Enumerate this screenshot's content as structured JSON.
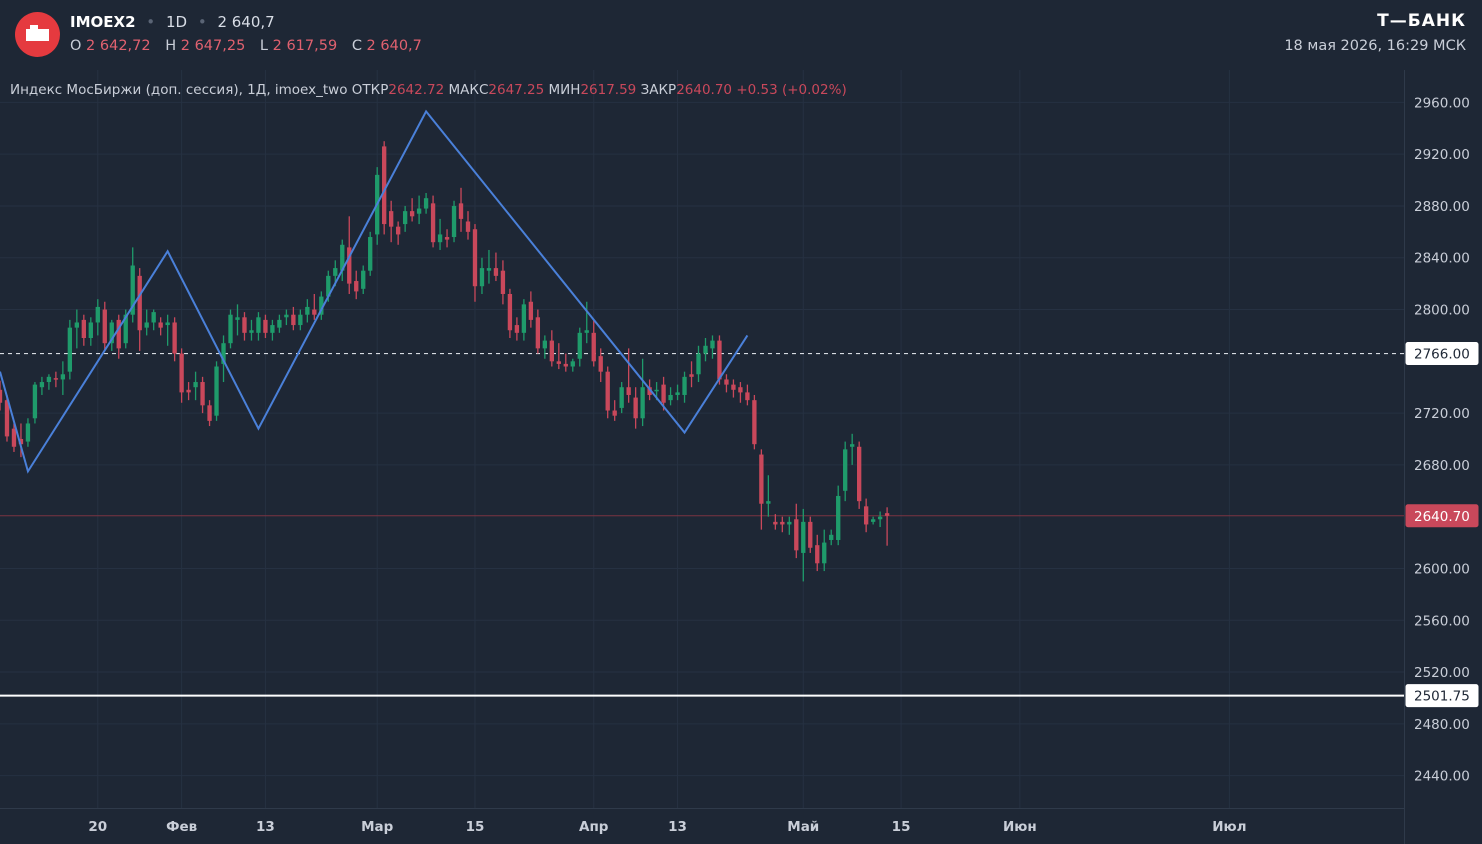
{
  "header": {
    "ticker": "IMOEX2",
    "interval": "1D",
    "last": "2 640,7",
    "o_label": "O",
    "o_value": "2 642,72",
    "h_label": "H",
    "h_value": "2 647,25",
    "l_label": "L",
    "l_value": "2 617,59",
    "c_label": "C",
    "c_value": "2 640,7",
    "brand": "Т—БАНК",
    "datetime": "18 мая 2026, 16:29 МСК"
  },
  "legend": {
    "title": "Индекс МосБиржи (доп. сессия), 1Д, imoex_two",
    "open_label": "ОТКР",
    "open_value": "2642.72",
    "high_label": "МАКС",
    "high_value": "2647.25",
    "low_label": "МИН",
    "low_value": "2617.59",
    "close_label": "ЗАКР",
    "close_value": "2640.70",
    "change": "+0.53 (+0.02%)"
  },
  "colors": {
    "background": "#1e2735",
    "up": "#1f9b6b",
    "down": "#c9485b",
    "zigzag": "#4a80d9",
    "accent": "#e53a3f"
  },
  "chart_data": {
    "type": "candlestick",
    "y_range": [
      2415,
      2985
    ],
    "y_ticks": [
      2960,
      2920,
      2880,
      2840,
      2800,
      2720,
      2680,
      2600,
      2560,
      2520,
      2480,
      2440
    ],
    "y_tick_labels": [
      "2960.00",
      "2920.00",
      "2880.00",
      "2840.00",
      "2800.00",
      "2720.00",
      "2680.00",
      "2600.00",
      "2560.00",
      "2520.00",
      "2480.00",
      "2440.00"
    ],
    "x_range": [
      "2026-01-06",
      "2026-07-26"
    ],
    "x_ticks": [
      {
        "date": "2026-01-20",
        "label": "20"
      },
      {
        "date": "2026-02-01",
        "label": "Фев"
      },
      {
        "date": "2026-02-13",
        "label": "13"
      },
      {
        "date": "2026-03-01",
        "label": "Мар"
      },
      {
        "date": "2026-03-15",
        "label": "15"
      },
      {
        "date": "2026-04-01",
        "label": "Апр"
      },
      {
        "date": "2026-04-13",
        "label": "13"
      },
      {
        "date": "2026-05-01",
        "label": "Май"
      },
      {
        "date": "2026-05-15",
        "label": "15"
      },
      {
        "date": "2026-06-01",
        "label": "Июн"
      },
      {
        "date": "2026-07-01",
        "label": "Июл"
      }
    ],
    "horizontal_lines": [
      {
        "value": 2766.0,
        "label": "2766.00",
        "style": "dashed"
      },
      {
        "value": 2640.7,
        "label": "2640.70",
        "style": "last-price"
      },
      {
        "value": 2501.75,
        "label": "2501.75",
        "style": "solid"
      }
    ],
    "zigzag": [
      [
        "2026-01-06",
        2752
      ],
      [
        "2026-01-10",
        2675
      ],
      [
        "2026-01-30",
        2845
      ],
      [
        "2026-02-12",
        2708
      ],
      [
        "2026-03-08",
        2953
      ],
      [
        "2026-04-14",
        2705
      ],
      [
        "2026-04-23",
        2780
      ]
    ],
    "candles": [
      {
        "d": "2026-01-06",
        "o": 2738,
        "h": 2745,
        "l": 2722,
        "c": 2728
      },
      {
        "d": "2026-01-07",
        "o": 2730,
        "h": 2734,
        "l": 2698,
        "c": 2702
      },
      {
        "d": "2026-01-08",
        "o": 2708,
        "h": 2712,
        "l": 2690,
        "c": 2694
      },
      {
        "d": "2026-01-09",
        "o": 2700,
        "h": 2712,
        "l": 2686,
        "c": 2696
      },
      {
        "d": "2026-01-10",
        "o": 2698,
        "h": 2716,
        "l": 2694,
        "c": 2712
      },
      {
        "d": "2026-01-11",
        "o": 2716,
        "h": 2744,
        "l": 2712,
        "c": 2742
      },
      {
        "d": "2026-01-12",
        "o": 2740,
        "h": 2748,
        "l": 2734,
        "c": 2744
      },
      {
        "d": "2026-01-13",
        "o": 2744,
        "h": 2750,
        "l": 2738,
        "c": 2748
      },
      {
        "d": "2026-01-14",
        "o": 2747,
        "h": 2752,
        "l": 2740,
        "c": 2746
      },
      {
        "d": "2026-01-15",
        "o": 2746,
        "h": 2760,
        "l": 2734,
        "c": 2750
      },
      {
        "d": "2026-01-16",
        "o": 2752,
        "h": 2792,
        "l": 2746,
        "c": 2786
      },
      {
        "d": "2026-01-17",
        "o": 2786,
        "h": 2800,
        "l": 2770,
        "c": 2790
      },
      {
        "d": "2026-01-18",
        "o": 2792,
        "h": 2796,
        "l": 2772,
        "c": 2778
      },
      {
        "d": "2026-01-19",
        "o": 2778,
        "h": 2794,
        "l": 2772,
        "c": 2790
      },
      {
        "d": "2026-01-20",
        "o": 2790,
        "h": 2808,
        "l": 2780,
        "c": 2802
      },
      {
        "d": "2026-01-21",
        "o": 2800,
        "h": 2806,
        "l": 2768,
        "c": 2774
      },
      {
        "d": "2026-01-22",
        "o": 2774,
        "h": 2792,
        "l": 2768,
        "c": 2790
      },
      {
        "d": "2026-01-23",
        "o": 2792,
        "h": 2796,
        "l": 2762,
        "c": 2770
      },
      {
        "d": "2026-01-24",
        "o": 2774,
        "h": 2800,
        "l": 2770,
        "c": 2796
      },
      {
        "d": "2026-01-25",
        "o": 2796,
        "h": 2848,
        "l": 2790,
        "c": 2834
      },
      {
        "d": "2026-01-26",
        "o": 2826,
        "h": 2832,
        "l": 2768,
        "c": 2784
      },
      {
        "d": "2026-01-27",
        "o": 2786,
        "h": 2800,
        "l": 2780,
        "c": 2790
      },
      {
        "d": "2026-01-28",
        "o": 2790,
        "h": 2800,
        "l": 2784,
        "c": 2798
      },
      {
        "d": "2026-01-29",
        "o": 2790,
        "h": 2794,
        "l": 2780,
        "c": 2786
      },
      {
        "d": "2026-01-30",
        "o": 2788,
        "h": 2796,
        "l": 2772,
        "c": 2790
      },
      {
        "d": "2026-01-31",
        "o": 2790,
        "h": 2794,
        "l": 2760,
        "c": 2766
      },
      {
        "d": "2026-02-01",
        "o": 2766,
        "h": 2770,
        "l": 2728,
        "c": 2736
      },
      {
        "d": "2026-02-02",
        "o": 2738,
        "h": 2744,
        "l": 2730,
        "c": 2736
      },
      {
        "d": "2026-02-03",
        "o": 2740,
        "h": 2752,
        "l": 2730,
        "c": 2744
      },
      {
        "d": "2026-02-04",
        "o": 2744,
        "h": 2748,
        "l": 2720,
        "c": 2726
      },
      {
        "d": "2026-02-05",
        "o": 2726,
        "h": 2730,
        "l": 2710,
        "c": 2714
      },
      {
        "d": "2026-02-06",
        "o": 2718,
        "h": 2760,
        "l": 2714,
        "c": 2756
      },
      {
        "d": "2026-02-07",
        "o": 2758,
        "h": 2780,
        "l": 2744,
        "c": 2774
      },
      {
        "d": "2026-02-08",
        "o": 2774,
        "h": 2800,
        "l": 2770,
        "c": 2796
      },
      {
        "d": "2026-02-09",
        "o": 2792,
        "h": 2804,
        "l": 2780,
        "c": 2794
      },
      {
        "d": "2026-02-10",
        "o": 2794,
        "h": 2798,
        "l": 2776,
        "c": 2782
      },
      {
        "d": "2026-02-11",
        "o": 2782,
        "h": 2792,
        "l": 2776,
        "c": 2784
      },
      {
        "d": "2026-02-12",
        "o": 2782,
        "h": 2798,
        "l": 2776,
        "c": 2794
      },
      {
        "d": "2026-02-13",
        "o": 2792,
        "h": 2796,
        "l": 2778,
        "c": 2782
      },
      {
        "d": "2026-02-14",
        "o": 2782,
        "h": 2792,
        "l": 2776,
        "c": 2788
      },
      {
        "d": "2026-02-15",
        "o": 2786,
        "h": 2796,
        "l": 2782,
        "c": 2792
      },
      {
        "d": "2026-02-16",
        "o": 2794,
        "h": 2800,
        "l": 2788,
        "c": 2796
      },
      {
        "d": "2026-02-17",
        "o": 2796,
        "h": 2802,
        "l": 2784,
        "c": 2788
      },
      {
        "d": "2026-02-18",
        "o": 2788,
        "h": 2800,
        "l": 2784,
        "c": 2796
      },
      {
        "d": "2026-02-19",
        "o": 2796,
        "h": 2808,
        "l": 2790,
        "c": 2802
      },
      {
        "d": "2026-02-20",
        "o": 2800,
        "h": 2812,
        "l": 2792,
        "c": 2796
      },
      {
        "d": "2026-02-21",
        "o": 2796,
        "h": 2814,
        "l": 2792,
        "c": 2810
      },
      {
        "d": "2026-02-22",
        "o": 2810,
        "h": 2830,
        "l": 2806,
        "c": 2826
      },
      {
        "d": "2026-02-23",
        "o": 2826,
        "h": 2838,
        "l": 2818,
        "c": 2832
      },
      {
        "d": "2026-02-24",
        "o": 2830,
        "h": 2854,
        "l": 2822,
        "c": 2850
      },
      {
        "d": "2026-02-25",
        "o": 2848,
        "h": 2872,
        "l": 2812,
        "c": 2820
      },
      {
        "d": "2026-02-26",
        "o": 2822,
        "h": 2830,
        "l": 2808,
        "c": 2814
      },
      {
        "d": "2026-02-27",
        "o": 2816,
        "h": 2834,
        "l": 2812,
        "c": 2830
      },
      {
        "d": "2026-02-28",
        "o": 2830,
        "h": 2860,
        "l": 2826,
        "c": 2856
      },
      {
        "d": "2026-03-01",
        "o": 2858,
        "h": 2910,
        "l": 2850,
        "c": 2904
      },
      {
        "d": "2026-03-02",
        "o": 2926,
        "h": 2930,
        "l": 2858,
        "c": 2866
      },
      {
        "d": "2026-03-03",
        "o": 2876,
        "h": 2884,
        "l": 2852,
        "c": 2864
      },
      {
        "d": "2026-03-04",
        "o": 2864,
        "h": 2868,
        "l": 2850,
        "c": 2858
      },
      {
        "d": "2026-03-05",
        "o": 2866,
        "h": 2880,
        "l": 2860,
        "c": 2876
      },
      {
        "d": "2026-03-06",
        "o": 2876,
        "h": 2886,
        "l": 2868,
        "c": 2872
      },
      {
        "d": "2026-03-07",
        "o": 2874,
        "h": 2888,
        "l": 2866,
        "c": 2878
      },
      {
        "d": "2026-03-08",
        "o": 2878,
        "h": 2890,
        "l": 2874,
        "c": 2886
      },
      {
        "d": "2026-03-09",
        "o": 2882,
        "h": 2888,
        "l": 2848,
        "c": 2852
      },
      {
        "d": "2026-03-10",
        "o": 2852,
        "h": 2870,
        "l": 2846,
        "c": 2858
      },
      {
        "d": "2026-03-11",
        "o": 2856,
        "h": 2862,
        "l": 2848,
        "c": 2854
      },
      {
        "d": "2026-03-12",
        "o": 2856,
        "h": 2884,
        "l": 2852,
        "c": 2880
      },
      {
        "d": "2026-03-13",
        "o": 2882,
        "h": 2894,
        "l": 2860,
        "c": 2870
      },
      {
        "d": "2026-03-14",
        "o": 2868,
        "h": 2876,
        "l": 2854,
        "c": 2860
      },
      {
        "d": "2026-03-15",
        "o": 2862,
        "h": 2866,
        "l": 2806,
        "c": 2818
      },
      {
        "d": "2026-03-16",
        "o": 2818,
        "h": 2840,
        "l": 2812,
        "c": 2832
      },
      {
        "d": "2026-03-17",
        "o": 2830,
        "h": 2846,
        "l": 2820,
        "c": 2832
      },
      {
        "d": "2026-03-18",
        "o": 2832,
        "h": 2844,
        "l": 2822,
        "c": 2826
      },
      {
        "d": "2026-03-19",
        "o": 2830,
        "h": 2838,
        "l": 2804,
        "c": 2812
      },
      {
        "d": "2026-03-20",
        "o": 2812,
        "h": 2816,
        "l": 2778,
        "c": 2784
      },
      {
        "d": "2026-03-21",
        "o": 2788,
        "h": 2794,
        "l": 2776,
        "c": 2782
      },
      {
        "d": "2026-03-22",
        "o": 2782,
        "h": 2808,
        "l": 2776,
        "c": 2804
      },
      {
        "d": "2026-03-23",
        "o": 2806,
        "h": 2814,
        "l": 2786,
        "c": 2792
      },
      {
        "d": "2026-03-24",
        "o": 2794,
        "h": 2800,
        "l": 2766,
        "c": 2770
      },
      {
        "d": "2026-03-25",
        "o": 2770,
        "h": 2780,
        "l": 2762,
        "c": 2776
      },
      {
        "d": "2026-03-26",
        "o": 2776,
        "h": 2784,
        "l": 2756,
        "c": 2760
      },
      {
        "d": "2026-03-27",
        "o": 2760,
        "h": 2774,
        "l": 2754,
        "c": 2758
      },
      {
        "d": "2026-03-28",
        "o": 2758,
        "h": 2766,
        "l": 2752,
        "c": 2756
      },
      {
        "d": "2026-03-29",
        "o": 2756,
        "h": 2762,
        "l": 2752,
        "c": 2760
      },
      {
        "d": "2026-03-30",
        "o": 2762,
        "h": 2786,
        "l": 2756,
        "c": 2782
      },
      {
        "d": "2026-03-31",
        "o": 2782,
        "h": 2806,
        "l": 2774,
        "c": 2784
      },
      {
        "d": "2026-04-01",
        "o": 2782,
        "h": 2792,
        "l": 2756,
        "c": 2760
      },
      {
        "d": "2026-04-02",
        "o": 2764,
        "h": 2770,
        "l": 2744,
        "c": 2752
      },
      {
        "d": "2026-04-03",
        "o": 2752,
        "h": 2756,
        "l": 2716,
        "c": 2722
      },
      {
        "d": "2026-04-04",
        "o": 2722,
        "h": 2730,
        "l": 2714,
        "c": 2718
      },
      {
        "d": "2026-04-05",
        "o": 2724,
        "h": 2744,
        "l": 2720,
        "c": 2740
      },
      {
        "d": "2026-04-06",
        "o": 2740,
        "h": 2770,
        "l": 2728,
        "c": 2734
      },
      {
        "d": "2026-04-07",
        "o": 2732,
        "h": 2740,
        "l": 2708,
        "c": 2716
      },
      {
        "d": "2026-04-08",
        "o": 2716,
        "h": 2762,
        "l": 2710,
        "c": 2740
      },
      {
        "d": "2026-04-09",
        "o": 2740,
        "h": 2746,
        "l": 2730,
        "c": 2734
      },
      {
        "d": "2026-04-10",
        "o": 2738,
        "h": 2744,
        "l": 2730,
        "c": 2738
      },
      {
        "d": "2026-04-11",
        "o": 2742,
        "h": 2748,
        "l": 2722,
        "c": 2728
      },
      {
        "d": "2026-04-12",
        "o": 2730,
        "h": 2740,
        "l": 2726,
        "c": 2734
      },
      {
        "d": "2026-04-13",
        "o": 2734,
        "h": 2742,
        "l": 2730,
        "c": 2736
      },
      {
        "d": "2026-04-14",
        "o": 2734,
        "h": 2752,
        "l": 2728,
        "c": 2748
      },
      {
        "d": "2026-04-15",
        "o": 2750,
        "h": 2760,
        "l": 2740,
        "c": 2748
      },
      {
        "d": "2026-04-16",
        "o": 2750,
        "h": 2772,
        "l": 2744,
        "c": 2766
      },
      {
        "d": "2026-04-17",
        "o": 2766,
        "h": 2778,
        "l": 2760,
        "c": 2772
      },
      {
        "d": "2026-04-18",
        "o": 2770,
        "h": 2780,
        "l": 2762,
        "c": 2776
      },
      {
        "d": "2026-04-19",
        "o": 2776,
        "h": 2780,
        "l": 2742,
        "c": 2746
      },
      {
        "d": "2026-04-20",
        "o": 2746,
        "h": 2750,
        "l": 2736,
        "c": 2742
      },
      {
        "d": "2026-04-21",
        "o": 2742,
        "h": 2746,
        "l": 2732,
        "c": 2738
      },
      {
        "d": "2026-04-22",
        "o": 2740,
        "h": 2744,
        "l": 2728,
        "c": 2736
      },
      {
        "d": "2026-04-23",
        "o": 2736,
        "h": 2742,
        "l": 2726,
        "c": 2730
      },
      {
        "d": "2026-04-24",
        "o": 2730,
        "h": 2734,
        "l": 2692,
        "c": 2696
      },
      {
        "d": "2026-04-25",
        "o": 2688,
        "h": 2692,
        "l": 2630,
        "c": 2650
      },
      {
        "d": "2026-04-26",
        "o": 2650,
        "h": 2672,
        "l": 2640,
        "c": 2652
      },
      {
        "d": "2026-04-27",
        "o": 2636,
        "h": 2642,
        "l": 2630,
        "c": 2634
      },
      {
        "d": "2026-04-28",
        "o": 2636,
        "h": 2640,
        "l": 2628,
        "c": 2634
      },
      {
        "d": "2026-04-29",
        "o": 2634,
        "h": 2640,
        "l": 2626,
        "c": 2636
      },
      {
        "d": "2026-04-30",
        "o": 2638,
        "h": 2650,
        "l": 2608,
        "c": 2614
      },
      {
        "d": "2026-05-01",
        "o": 2612,
        "h": 2646,
        "l": 2590,
        "c": 2636
      },
      {
        "d": "2026-05-02",
        "o": 2636,
        "h": 2640,
        "l": 2612,
        "c": 2616
      },
      {
        "d": "2026-05-03",
        "o": 2618,
        "h": 2626,
        "l": 2598,
        "c": 2604
      },
      {
        "d": "2026-05-04",
        "o": 2604,
        "h": 2630,
        "l": 2598,
        "c": 2620
      },
      {
        "d": "2026-05-05",
        "o": 2622,
        "h": 2630,
        "l": 2618,
        "c": 2626
      },
      {
        "d": "2026-05-06",
        "o": 2622,
        "h": 2664,
        "l": 2618,
        "c": 2656
      },
      {
        "d": "2026-05-07",
        "o": 2660,
        "h": 2698,
        "l": 2652,
        "c": 2692
      },
      {
        "d": "2026-05-08",
        "o": 2694,
        "h": 2704,
        "l": 2680,
        "c": 2696
      },
      {
        "d": "2026-05-09",
        "o": 2694,
        "h": 2698,
        "l": 2646,
        "c": 2652
      },
      {
        "d": "2026-05-10",
        "o": 2648,
        "h": 2654,
        "l": 2628,
        "c": 2634
      },
      {
        "d": "2026-05-11",
        "o": 2636,
        "h": 2640,
        "l": 2634,
        "c": 2638
      },
      {
        "d": "2026-05-12",
        "o": 2638,
        "h": 2644,
        "l": 2632,
        "c": 2640
      },
      {
        "d": "2026-05-13",
        "o": 2642.72,
        "h": 2647.25,
        "l": 2617.59,
        "c": 2640.7
      }
    ]
  }
}
